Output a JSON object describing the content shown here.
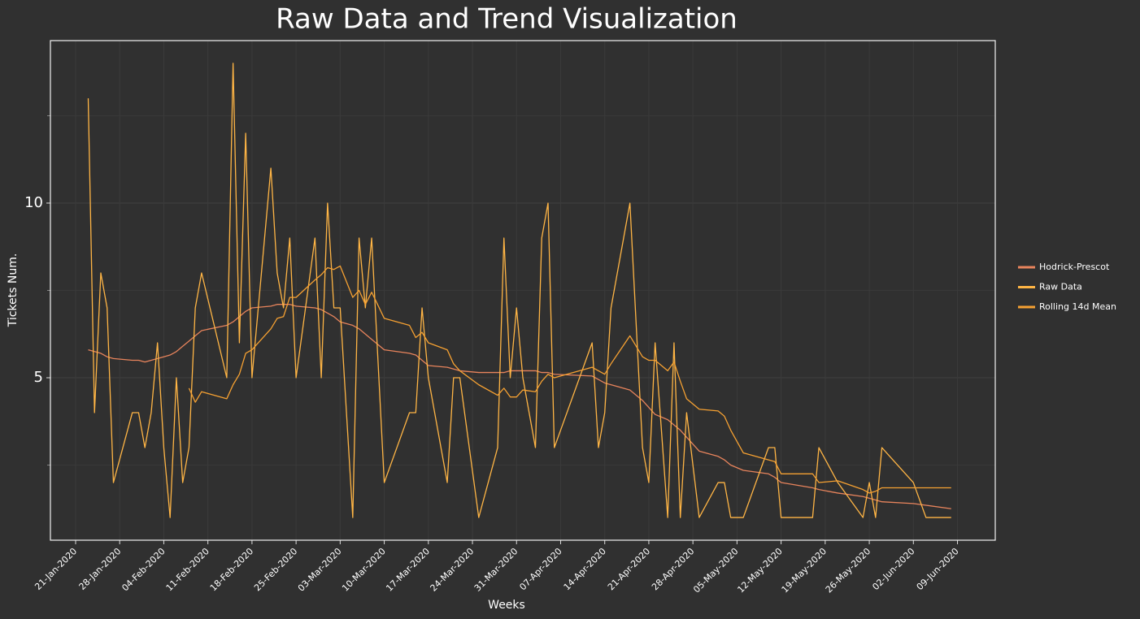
{
  "chart_data": {
    "type": "line",
    "title": "Raw Data and Trend Visualization",
    "x_label": "Weeks",
    "y_label": "Tickets Num.",
    "x": [
      "2020-01-23",
      "2020-01-24",
      "2020-01-25",
      "2020-01-26",
      "2020-01-27",
      "2020-01-30",
      "2020-01-31",
      "2020-02-01",
      "2020-02-02",
      "2020-02-03",
      "2020-02-04",
      "2020-02-05",
      "2020-02-06",
      "2020-02-07",
      "2020-02-08",
      "2020-02-09",
      "2020-02-10",
      "2020-02-14",
      "2020-02-15",
      "2020-02-16",
      "2020-02-17",
      "2020-02-18",
      "2020-02-21",
      "2020-02-22",
      "2020-02-23",
      "2020-02-24",
      "2020-02-25",
      "2020-02-28",
      "2020-02-29",
      "2020-03-01",
      "2020-03-02",
      "2020-03-03",
      "2020-03-05",
      "2020-03-06",
      "2020-03-07",
      "2020-03-08",
      "2020-03-10",
      "2020-03-14",
      "2020-03-15",
      "2020-03-16",
      "2020-03-17",
      "2020-03-20",
      "2020-03-21",
      "2020-03-22",
      "2020-03-25",
      "2020-03-28",
      "2020-03-29",
      "2020-03-30",
      "2020-03-31",
      "2020-04-01",
      "2020-04-03",
      "2020-04-04",
      "2020-04-05",
      "2020-04-06",
      "2020-04-12",
      "2020-04-13",
      "2020-04-14",
      "2020-04-15",
      "2020-04-18",
      "2020-04-20",
      "2020-04-21",
      "2020-04-22",
      "2020-04-24",
      "2020-04-25",
      "2020-04-26",
      "2020-04-27",
      "2020-04-29",
      "2020-05-02",
      "2020-05-03",
      "2020-05-04",
      "2020-05-06",
      "2020-05-10",
      "2020-05-11",
      "2020-05-12",
      "2020-05-17",
      "2020-05-18",
      "2020-05-21",
      "2020-05-25",
      "2020-05-26",
      "2020-05-27",
      "2020-05-28",
      "2020-06-02",
      "2020-06-04",
      "2020-06-08"
    ],
    "series": [
      {
        "name": "Hodrick-Prescot",
        "color": "#e8845c",
        "values": [
          5.8,
          5.75,
          5.7,
          5.6,
          5.55,
          5.5,
          5.5,
          5.45,
          5.5,
          5.55,
          5.6,
          5.65,
          5.75,
          5.9,
          6.05,
          6.2,
          6.35,
          6.5,
          6.6,
          6.75,
          6.9,
          7.0,
          7.05,
          7.1,
          7.1,
          7.1,
          7.05,
          7.0,
          6.95,
          6.85,
          6.75,
          6.6,
          6.5,
          6.4,
          6.25,
          6.1,
          5.8,
          5.7,
          5.65,
          5.5,
          5.35,
          5.3,
          5.25,
          5.2,
          5.15,
          5.15,
          5.15,
          5.2,
          5.2,
          5.2,
          5.2,
          5.15,
          5.15,
          5.1,
          5.05,
          4.95,
          4.85,
          4.8,
          4.65,
          4.35,
          4.15,
          3.95,
          3.8,
          3.65,
          3.5,
          3.3,
          2.9,
          2.75,
          2.65,
          2.5,
          2.35,
          2.25,
          2.15,
          2.0,
          1.85,
          1.8,
          1.7,
          1.6,
          1.55,
          1.5,
          1.45,
          1.4,
          1.35,
          1.25
        ]
      },
      {
        "name": "Raw Data",
        "color": "#ffb545",
        "values": [
          13,
          4,
          8,
          7,
          2,
          4,
          4,
          3,
          4,
          6,
          3,
          1,
          5,
          2,
          3,
          7,
          8,
          5,
          14,
          6,
          12,
          5,
          11,
          8,
          7,
          9,
          5,
          9,
          5,
          10,
          7,
          7,
          1,
          9,
          7,
          9,
          2,
          4,
          4,
          7,
          5,
          2,
          5,
          5,
          1,
          3,
          9,
          5,
          7,
          5,
          3,
          9,
          10,
          3,
          6,
          3,
          4,
          7,
          10,
          3,
          2,
          6,
          1,
          6,
          1,
          4,
          1,
          2,
          2,
          1,
          1,
          3,
          3,
          1,
          1,
          3,
          2,
          1,
          2,
          1,
          3,
          2,
          1,
          1
        ]
      },
      {
        "name": "Rolling 14d Mean",
        "color": "#f6a132",
        "values": [
          null,
          null,
          null,
          null,
          null,
          null,
          null,
          null,
          null,
          null,
          null,
          null,
          null,
          null,
          4.7,
          4.3,
          4.6,
          4.4,
          4.8,
          5.1,
          5.7,
          5.8,
          6.4,
          6.7,
          6.75,
          7.3,
          7.3,
          7.8,
          7.95,
          8.15,
          8.1,
          8.2,
          7.3,
          7.5,
          7.1,
          7.45,
          6.7,
          6.5,
          6.15,
          6.3,
          6.0,
          5.8,
          5.4,
          5.2,
          4.8,
          4.5,
          4.7,
          4.45,
          4.45,
          4.65,
          4.6,
          4.9,
          5.1,
          5.0,
          5.3,
          5.2,
          5.1,
          5.4,
          6.2,
          5.6,
          5.5,
          5.5,
          5.2,
          5.45,
          4.9,
          4.4,
          4.1,
          4.05,
          3.9,
          3.5,
          2.85,
          2.65,
          2.6,
          2.25,
          2.25,
          2.0,
          2.05,
          1.8,
          1.7,
          1.75,
          1.85,
          1.85,
          1.85,
          1.85
        ]
      }
    ],
    "xlim": [
      "2020-01-17",
      "2020-06-15"
    ],
    "xticks": [
      {
        "value": "2020-01-21",
        "label": "21-Jan-2020"
      },
      {
        "value": "2020-01-28",
        "label": "28-Jan-2020"
      },
      {
        "value": "2020-02-04",
        "label": "04-Feb-2020"
      },
      {
        "value": "2020-02-11",
        "label": "11-Feb-2020"
      },
      {
        "value": "2020-02-18",
        "label": "18-Feb-2020"
      },
      {
        "value": "2020-02-25",
        "label": "25-Feb-2020"
      },
      {
        "value": "2020-03-03",
        "label": "03-Mar-2020"
      },
      {
        "value": "2020-03-10",
        "label": "10-Mar-2020"
      },
      {
        "value": "2020-03-17",
        "label": "17-Mar-2020"
      },
      {
        "value": "2020-03-24",
        "label": "24-Mar-2020"
      },
      {
        "value": "2020-03-31",
        "label": "31-Mar-2020"
      },
      {
        "value": "2020-04-07",
        "label": "07-Apr-2020"
      },
      {
        "value": "2020-04-14",
        "label": "14-Apr-2020"
      },
      {
        "value": "2020-04-21",
        "label": "21-Apr-2020"
      },
      {
        "value": "2020-04-28",
        "label": "28-Apr-2020"
      },
      {
        "value": "2020-05-05",
        "label": "05-May-2020"
      },
      {
        "value": "2020-05-12",
        "label": "12-May-2020"
      },
      {
        "value": "2020-05-19",
        "label": "19-May-2020"
      },
      {
        "value": "2020-05-26",
        "label": "26-May-2020"
      },
      {
        "value": "2020-06-02",
        "label": "02-Jun-2020"
      },
      {
        "value": "2020-06-09",
        "label": "09-Jun-2020"
      }
    ],
    "ylim": [
      0.35,
      14.65
    ],
    "yticks": [
      5,
      10
    ],
    "minor_yticks": [
      2.5,
      7.5,
      12.5
    ],
    "grid": true,
    "legend": "right"
  }
}
